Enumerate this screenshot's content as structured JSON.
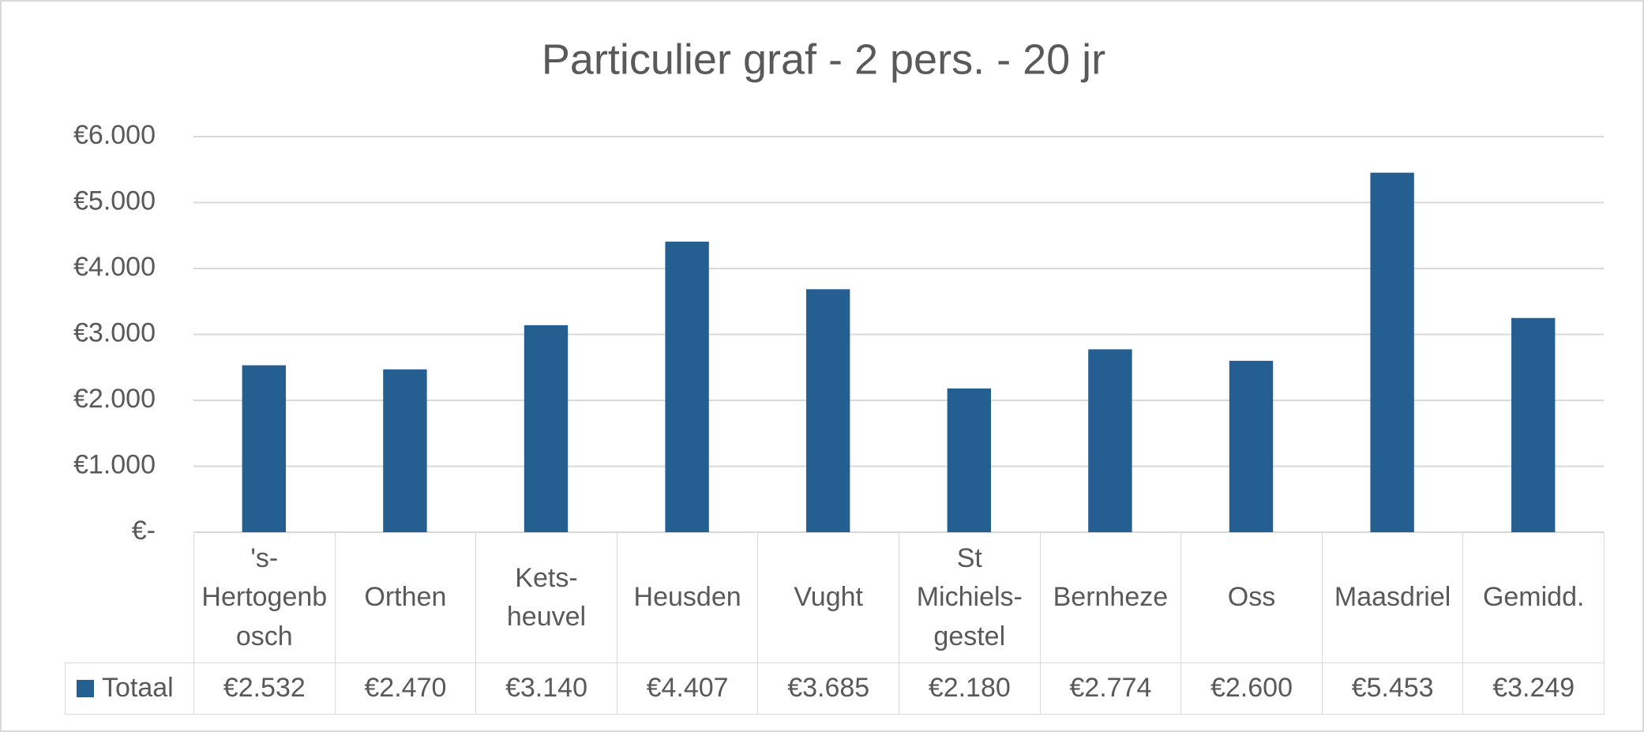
{
  "chart_data": {
    "type": "bar",
    "title": "Particulier graf - 2 pers. - 20 jr",
    "categories": [
      "'s-Hertogenbosch",
      "Orthen",
      "Kets-heuvel",
      "Heusden",
      "Vught",
      "St Michiels-gestel",
      "Bernheze",
      "Oss",
      "Maasdriel",
      "Gemidd."
    ],
    "series": [
      {
        "name": "Totaal",
        "color": "#255e91",
        "values": [
          2532,
          2470,
          3140,
          4407,
          3685,
          2180,
          2774,
          2600,
          5453,
          3249
        ],
        "value_labels": [
          "€2.532",
          "€2.470",
          "€3.140",
          "€4.407",
          "€3.685",
          "€2.180",
          "€2.774",
          "€2.600",
          "€5.453",
          "€3.249"
        ]
      }
    ],
    "ylim": [
      0,
      6000
    ],
    "yticks": [
      {
        "value": 0,
        "label": "€-"
      },
      {
        "value": 1000,
        "label": "€1.000"
      },
      {
        "value": 2000,
        "label": "€2.000"
      },
      {
        "value": 3000,
        "label": "€3.000"
      },
      {
        "value": 4000,
        "label": "€4.000"
      },
      {
        "value": 5000,
        "label": "€5.000"
      },
      {
        "value": 6000,
        "label": "€6.000"
      }
    ],
    "grid": true,
    "data_table": true
  }
}
